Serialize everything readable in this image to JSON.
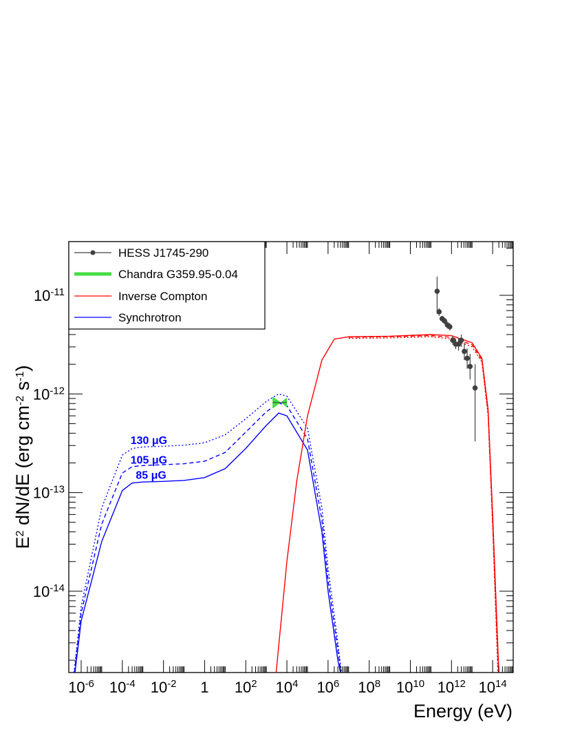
{
  "chart_data": {
    "type": "line",
    "title": "",
    "xlabel": "Energy (eV)",
    "ylabel": "E^2 dN/dE (erg cm^-2 s^-1)",
    "x_scale": "log",
    "y_scale": "log",
    "xlim": [
      2.5e-07,
      1000000000000000.0
    ],
    "ylim": [
      1.5e-15,
      3.5e-11
    ],
    "x_ticks": [
      {
        "value": 1e-06,
        "base": "10",
        "exp": "-6"
      },
      {
        "value": 0.0001,
        "base": "10",
        "exp": "-4"
      },
      {
        "value": 0.01,
        "base": "10",
        "exp": "-2"
      },
      {
        "value": 1,
        "base": "1",
        "exp": ""
      },
      {
        "value": 100.0,
        "base": "10",
        "exp": "2"
      },
      {
        "value": 10000.0,
        "base": "10",
        "exp": "4"
      },
      {
        "value": 1000000.0,
        "base": "10",
        "exp": "6"
      },
      {
        "value": 100000000.0,
        "base": "10",
        "exp": "8"
      },
      {
        "value": 10000000000.0,
        "base": "10",
        "exp": "10"
      },
      {
        "value": 1000000000000.0,
        "base": "10",
        "exp": "12"
      },
      {
        "value": 100000000000000.0,
        "base": "10",
        "exp": "14"
      }
    ],
    "y_ticks": [
      {
        "value": 1e-14,
        "base": "10",
        "exp": "-14"
      },
      {
        "value": 1e-13,
        "base": "10",
        "exp": "-13"
      },
      {
        "value": 1e-12,
        "base": "10",
        "exp": "-12"
      },
      {
        "value": 1e-11,
        "base": "10",
        "exp": "-11"
      }
    ],
    "legend": {
      "position": "top-left",
      "entries": [
        {
          "label": "HESS J1745-290",
          "style": "marker-line",
          "color": "#404040"
        },
        {
          "label": "Chandra G359.95-0.04",
          "style": "thick-line",
          "color": "#44dd44"
        },
        {
          "label": "Inverse Compton",
          "style": "line",
          "color": "#ff0000"
        },
        {
          "label": "Synchrotron",
          "style": "line",
          "color": "#0000ff"
        }
      ]
    },
    "series": [
      {
        "kind": "synchrotron",
        "color": "#0000ff",
        "dash": "solid",
        "points": [
          [
            5e-07,
            1.5e-15
          ],
          [
            1e-06,
            5e-15
          ],
          [
            1e-05,
            3.2e-14
          ],
          [
            0.0001,
            1.05e-13
          ],
          [
            0.0003,
            1.25e-13
          ],
          [
            0.001,
            1.28e-13
          ],
          [
            0.01,
            1.3e-13
          ],
          [
            0.1,
            1.33e-13
          ],
          [
            1,
            1.42e-13
          ],
          [
            10,
            1.75e-13
          ],
          [
            100,
            2.8e-13
          ],
          [
            1000.0,
            4.8e-13
          ],
          [
            4000.0,
            6.4e-13
          ],
          [
            10000.0,
            6e-13
          ],
          [
            100000.0,
            2.7e-13
          ],
          [
            500000.0,
            4e-14
          ],
          [
            1000000.0,
            1e-14
          ],
          [
            3000000.0,
            2e-15
          ],
          [
            4000000.0,
            1.5e-15
          ]
        ]
      },
      {
        "kind": "synchrotron",
        "color": "#0000ff",
        "dash": "dashed",
        "points": [
          [
            4.7e-07,
            1.5e-15
          ],
          [
            1e-06,
            6e-15
          ],
          [
            1e-05,
            4.8e-14
          ],
          [
            0.0001,
            1.58e-13
          ],
          [
            0.0003,
            1.83e-13
          ],
          [
            0.001,
            1.88e-13
          ],
          [
            0.01,
            1.92e-13
          ],
          [
            0.1,
            1.96e-13
          ],
          [
            1,
            2.08e-13
          ],
          [
            10,
            2.55e-13
          ],
          [
            100,
            4.1e-13
          ],
          [
            1000.0,
            6.6e-13
          ],
          [
            4000.0,
            8.1e-13
          ],
          [
            10000.0,
            7.6e-13
          ],
          [
            100000.0,
            3.5e-13
          ],
          [
            500000.0,
            5.3e-14
          ],
          [
            1000000.0,
            1.3e-14
          ],
          [
            3000000.0,
            2.5e-15
          ],
          [
            4200000.0,
            1.5e-15
          ]
        ]
      },
      {
        "kind": "synchrotron",
        "color": "#0000ff",
        "dash": "dotted",
        "points": [
          [
            4.5e-07,
            1.5e-15
          ],
          [
            1e-06,
            7e-15
          ],
          [
            1e-05,
            7e-14
          ],
          [
            0.0001,
            2.4e-13
          ],
          [
            0.0003,
            2.8e-13
          ],
          [
            0.001,
            2.9e-13
          ],
          [
            0.01,
            2.95e-13
          ],
          [
            0.1,
            3.02e-13
          ],
          [
            1,
            3.2e-13
          ],
          [
            10,
            3.85e-13
          ],
          [
            100,
            5.6e-13
          ],
          [
            1000.0,
            8.4e-13
          ],
          [
            4000.0,
            1e-12
          ],
          [
            10000.0,
            9.5e-13
          ],
          [
            100000.0,
            4.5e-13
          ],
          [
            500000.0,
            7e-14
          ],
          [
            1000000.0,
            1.7e-14
          ],
          [
            3000000.0,
            3e-15
          ],
          [
            4500000.0,
            1.5e-15
          ]
        ]
      },
      {
        "kind": "inverse-compton",
        "color": "#ff0000",
        "dash": "solid",
        "points": [
          [
            3000.0,
            1.5e-15
          ],
          [
            10000.0,
            2e-14
          ],
          [
            30000.0,
            1.3e-13
          ],
          [
            100000.0,
            6e-13
          ],
          [
            500000.0,
            2.2e-12
          ],
          [
            2000000.0,
            3.6e-12
          ],
          [
            10000000.0,
            3.8e-12
          ],
          [
            1000000000.0,
            3.85e-12
          ],
          [
            100000000000.0,
            4e-12
          ],
          [
            1000000000000.0,
            3.9e-12
          ],
          [
            10000000000000.0,
            3.3e-12
          ],
          [
            30000000000000.0,
            2.3e-12
          ],
          [
            60000000000000.0,
            7e-13
          ],
          [
            100000000000000.0,
            6e-14
          ],
          [
            200000000000000.0,
            1.5e-15
          ]
        ]
      },
      {
        "kind": "inverse-compton",
        "color": "#ff0000",
        "dash": "dashed",
        "points": [
          [
            10000000.0,
            3.75e-12
          ],
          [
            1000000000.0,
            3.8e-12
          ],
          [
            100000000000.0,
            3.9e-12
          ],
          [
            1000000000000.0,
            3.75e-12
          ],
          [
            10000000000000.0,
            3.15e-12
          ],
          [
            30000000000000.0,
            2.2e-12
          ],
          [
            60000000000000.0,
            6.5e-13
          ],
          [
            100000000000000.0,
            5e-14
          ],
          [
            190000000000000.0,
            1.5e-15
          ]
        ]
      },
      {
        "kind": "inverse-compton",
        "color": "#ff0000",
        "dash": "dotted",
        "points": [
          [
            10000000.0,
            3.65e-12
          ],
          [
            1000000000.0,
            3.7e-12
          ],
          [
            100000000000.0,
            3.8e-12
          ],
          [
            1000000000000.0,
            3.6e-12
          ],
          [
            10000000000000.0,
            3e-12
          ],
          [
            30000000000000.0,
            2.1e-12
          ],
          [
            60000000000000.0,
            6e-13
          ],
          [
            100000000000000.0,
            4.5e-14
          ],
          [
            180000000000000.0,
            1.5e-15
          ]
        ]
      }
    ],
    "hess_points": [
      {
        "x": 200000000000.0,
        "y": 1.1e-11,
        "yerr_low": 6.5e-12,
        "yerr_high": 1.55e-11
      },
      {
        "x": 250000000000.0,
        "y": 6.8e-12,
        "yerr_low": 6.2e-12,
        "yerr_high": 7.4e-12
      },
      {
        "x": 350000000000.0,
        "y": 5.8e-12,
        "yerr_low": 5.4e-12,
        "yerr_high": 6.2e-12
      },
      {
        "x": 460000000000.0,
        "y": 5.5e-12,
        "yerr_low": 5.1e-12,
        "yerr_high": 5.9e-12
      },
      {
        "x": 630000000000.0,
        "y": 5e-12,
        "yerr_low": 4.6e-12,
        "yerr_high": 5.4e-12
      },
      {
        "x": 830000000000.0,
        "y": 4.8e-12,
        "yerr_low": 4.4e-12,
        "yerr_high": 5.2e-12
      },
      {
        "x": 1150000000000.0,
        "y": 3.5e-12,
        "yerr_low": 3.15e-12,
        "yerr_high": 3.9e-12
      },
      {
        "x": 1600000000000.0,
        "y": 3.2e-12,
        "yerr_low": 2.85e-12,
        "yerr_high": 3.6e-12
      },
      {
        "x": 2200000000000.0,
        "y": 3.2e-12,
        "yerr_low": 2.75e-12,
        "yerr_high": 3.7e-12
      },
      {
        "x": 3000000000000.0,
        "y": 3.5e-12,
        "yerr_low": 3e-12,
        "yerr_high": 4e-12
      },
      {
        "x": 4200000000000.0,
        "y": 2.7e-12,
        "yerr_low": 2.2e-12,
        "yerr_high": 3.3e-12
      },
      {
        "x": 5800000000000.0,
        "y": 2.3e-12,
        "yerr_low": 1.8e-12,
        "yerr_high": 2.9e-12
      },
      {
        "x": 8000000000000.0,
        "y": 1.9e-12,
        "yerr_low": 1.4e-12,
        "yerr_high": 2.55e-12
      },
      {
        "x": 14000000000000.0,
        "y": 1.15e-12,
        "yerr_low": 3.3e-13,
        "yerr_high": 2e-12
      }
    ],
    "chandra_bowtie": {
      "x_min": 2000.0,
      "x_mid": 5000.0,
      "x_max": 10000.0,
      "y_mid": 8.2e-13,
      "y_low_left": 7.1e-13,
      "y_high_left": 9.4e-13,
      "y_low_right": 7.3e-13,
      "y_high_right": 9.2e-13,
      "color": "#44dd44"
    },
    "annotations": [
      {
        "label": "130 μG",
        "x": 0.00025,
        "y": 3.1e-13
      },
      {
        "label": "105 μG",
        "x": 0.00025,
        "y": 1.97e-13
      },
      {
        "label": "85 μG",
        "x": 0.00045,
        "y": 1.38e-13
      }
    ]
  }
}
